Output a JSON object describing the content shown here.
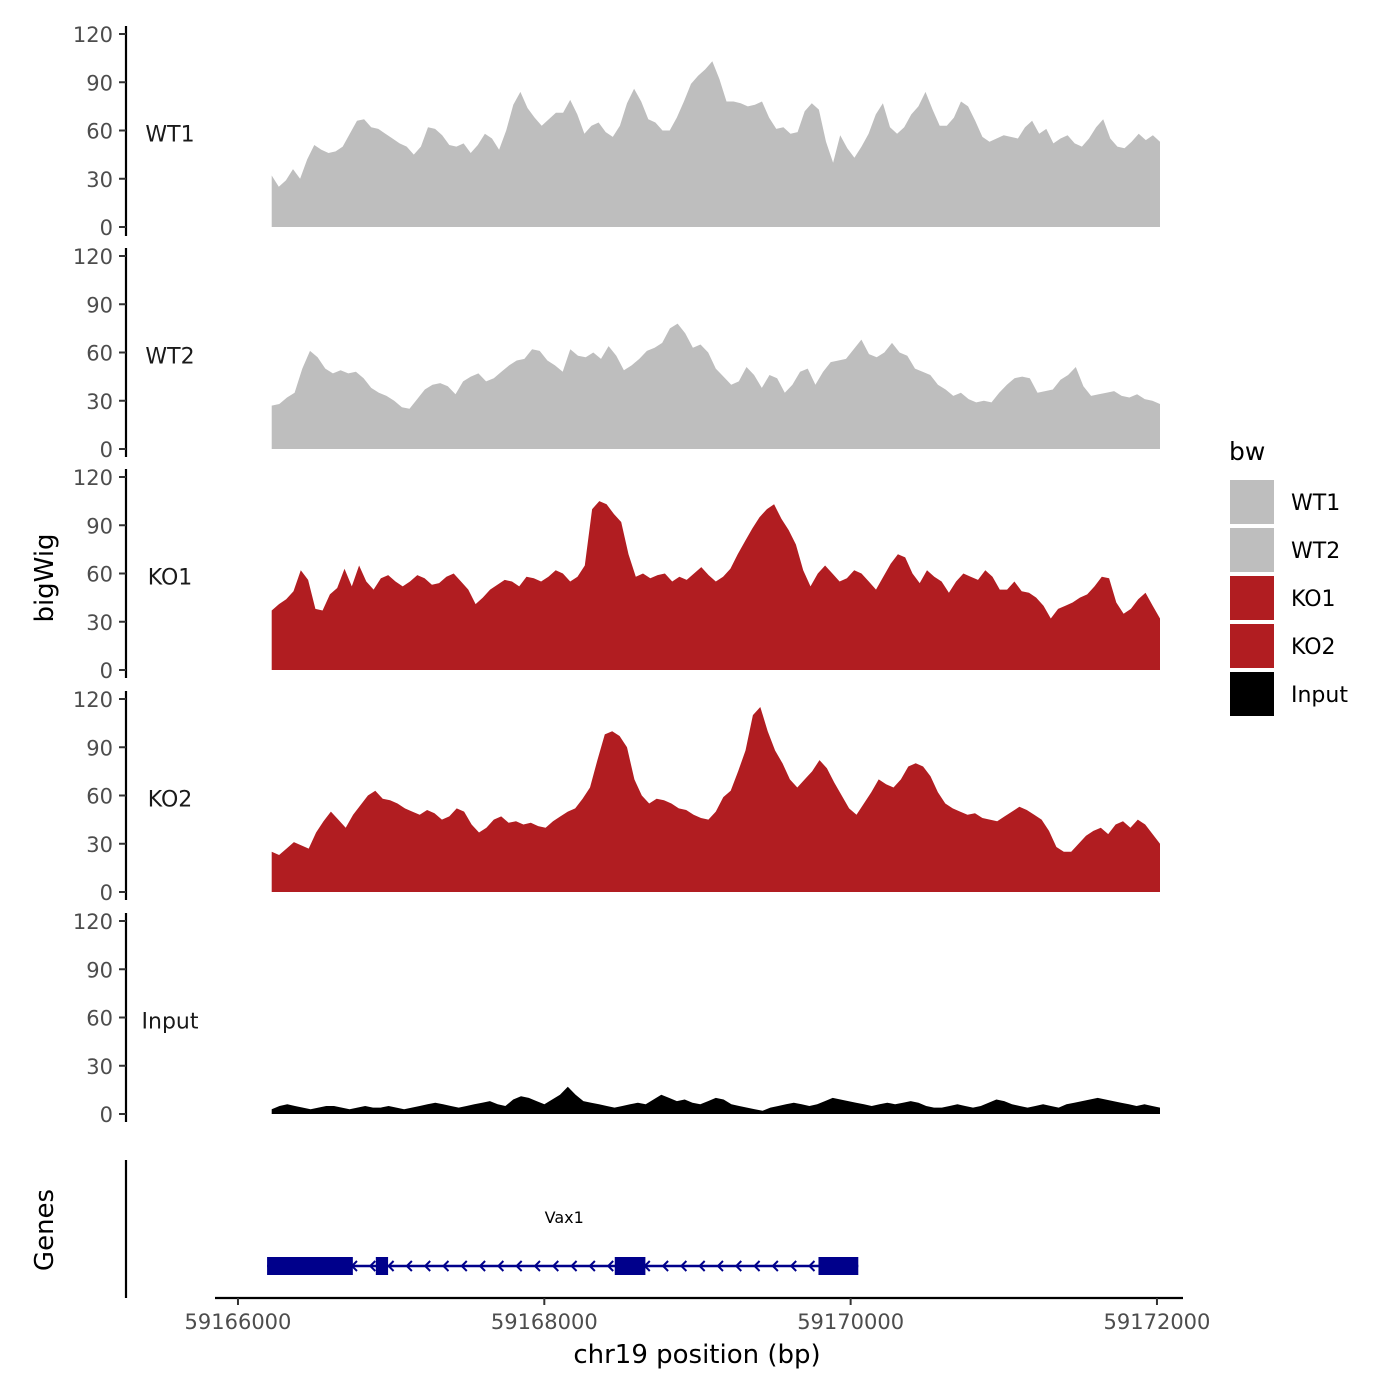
{
  "chart_data": {
    "type": "area",
    "ylabel": "bigWig",
    "xlabel": "chr19 position (bp)",
    "genes_label": "Genes",
    "xlim": [
      59165850,
      59172170
    ],
    "x_ticks": [
      59166000,
      59168000,
      59170000,
      59172000
    ],
    "x_tick_labels": [
      "59166000",
      "59168000",
      "59170000",
      "59172000"
    ],
    "ylim": [
      0,
      120
    ],
    "y_ticks": [
      0,
      30,
      60,
      90,
      120
    ],
    "y_tick_labels": [
      "0",
      "30",
      "60",
      "90",
      "120"
    ],
    "x_start": 59166220,
    "x_end": 59172020,
    "legend": {
      "title": "bw",
      "entries": [
        {
          "label": "WT1",
          "color": "#bebebe"
        },
        {
          "label": "WT2",
          "color": "#bebebe"
        },
        {
          "label": "KO1",
          "color": "#b11d21"
        },
        {
          "label": "KO2",
          "color": "#b11d21"
        },
        {
          "label": "Input",
          "color": "#000000"
        }
      ]
    },
    "series": [
      {
        "name": "WT1",
        "color": "#bebebe",
        "values": [
          32,
          25,
          29,
          36,
          30,
          42,
          51,
          48,
          46,
          47,
          50,
          58,
          66,
          67,
          62,
          61,
          58,
          55,
          52,
          50,
          45,
          50,
          62,
          61,
          57,
          51,
          50,
          52,
          46,
          51,
          58,
          55,
          48,
          60,
          76,
          84,
          74,
          68,
          63,
          67,
          71,
          71,
          79,
          70,
          58,
          63,
          65,
          59,
          56,
          63,
          77,
          86,
          78,
          67,
          65,
          60,
          60,
          68,
          78,
          89,
          94,
          98,
          103,
          92,
          78,
          78,
          77,
          75,
          76,
          78,
          68,
          61,
          62,
          58,
          59,
          72,
          77,
          73,
          53,
          40,
          57,
          49,
          43,
          50,
          58,
          70,
          77,
          62,
          58,
          62,
          70,
          75,
          84,
          73,
          63,
          63,
          68,
          78,
          75,
          66,
          56,
          53,
          55,
          57,
          56,
          55,
          62,
          66,
          58,
          61,
          52,
          55,
          57,
          52,
          50,
          55,
          62,
          67,
          55,
          50,
          49,
          53,
          58,
          54,
          57,
          53
        ]
      },
      {
        "name": "WT2",
        "color": "#bebebe",
        "values": [
          27,
          28,
          32,
          35,
          50,
          61,
          57,
          50,
          47,
          49,
          47,
          48,
          44,
          38,
          35,
          33,
          30,
          26,
          25,
          31,
          37,
          40,
          41,
          39,
          34,
          42,
          45,
          47,
          42,
          44,
          48,
          52,
          55,
          56,
          62,
          61,
          55,
          52,
          48,
          62,
          58,
          57,
          60,
          56,
          64,
          58,
          49,
          52,
          56,
          61,
          63,
          66,
          75,
          78,
          72,
          63,
          65,
          60,
          50,
          45,
          40,
          42,
          51,
          46,
          38,
          46,
          44,
          35,
          40,
          48,
          50,
          40,
          48,
          54,
          55,
          56,
          62,
          68,
          59,
          57,
          60,
          66,
          60,
          58,
          50,
          48,
          46,
          40,
          37,
          33,
          35,
          31,
          29,
          30,
          29,
          35,
          40,
          44,
          45,
          44,
          35,
          36,
          37,
          43,
          46,
          51,
          39,
          33,
          34,
          35,
          36,
          33,
          32,
          34,
          31,
          30,
          28
        ]
      },
      {
        "name": "KO1",
        "color": "#b11d21",
        "values": [
          37,
          41,
          44,
          49,
          62,
          56,
          38,
          37,
          47,
          51,
          63,
          52,
          65,
          55,
          50,
          57,
          59,
          55,
          52,
          55,
          59,
          57,
          53,
          54,
          58,
          60,
          55,
          50,
          41,
          45,
          50,
          53,
          56,
          55,
          52,
          58,
          57,
          55,
          58,
          62,
          60,
          55,
          58,
          65,
          100,
          105,
          103,
          97,
          92,
          72,
          58,
          60,
          57,
          59,
          60,
          55,
          58,
          56,
          60,
          64,
          59,
          55,
          58,
          63,
          72,
          80,
          88,
          95,
          100,
          103,
          94,
          87,
          78,
          62,
          52,
          60,
          65,
          60,
          55,
          57,
          62,
          60,
          55,
          50,
          58,
          66,
          72,
          70,
          60,
          54,
          62,
          58,
          55,
          48,
          55,
          60,
          58,
          56,
          62,
          58,
          50,
          50,
          55,
          49,
          48,
          45,
          40,
          32,
          38,
          40,
          42,
          45,
          47,
          52,
          58,
          57,
          42,
          35,
          38,
          44,
          48,
          40,
          32
        ]
      },
      {
        "name": "KO2",
        "color": "#b11d21",
        "values": [
          25,
          23,
          27,
          31,
          29,
          27,
          37,
          44,
          50,
          45,
          40,
          48,
          54,
          60,
          63,
          58,
          57,
          55,
          52,
          50,
          48,
          51,
          49,
          45,
          47,
          52,
          50,
          42,
          37,
          40,
          45,
          47,
          43,
          44,
          42,
          43,
          41,
          40,
          44,
          47,
          50,
          52,
          58,
          65,
          82,
          98,
          100,
          97,
          90,
          70,
          60,
          55,
          58,
          57,
          55,
          52,
          51,
          48,
          46,
          45,
          50,
          59,
          63,
          75,
          88,
          110,
          115,
          100,
          88,
          80,
          70,
          65,
          70,
          75,
          82,
          77,
          68,
          60,
          52,
          48,
          55,
          62,
          70,
          67,
          65,
          70,
          78,
          80,
          78,
          72,
          62,
          55,
          52,
          50,
          48,
          49,
          46,
          45,
          44,
          47,
          50,
          53,
          51,
          48,
          45,
          38,
          28,
          25,
          25,
          30,
          35,
          38,
          40,
          36,
          42,
          44,
          40,
          45,
          42,
          36,
          30
        ]
      },
      {
        "name": "Input",
        "color": "#000000",
        "values": [
          3,
          5,
          6,
          5,
          4,
          3,
          4,
          5,
          5,
          4,
          3,
          4,
          5,
          4,
          4,
          5,
          4,
          3,
          4,
          5,
          6,
          7,
          6,
          5,
          4,
          5,
          6,
          7,
          8,
          6,
          5,
          9,
          11,
          10,
          8,
          6,
          9,
          12,
          17,
          12,
          8,
          7,
          6,
          5,
          4,
          5,
          6,
          7,
          6,
          9,
          12,
          10,
          8,
          9,
          7,
          6,
          8,
          10,
          9,
          6,
          5,
          4,
          3,
          2,
          4,
          5,
          6,
          7,
          6,
          5,
          6,
          8,
          10,
          9,
          8,
          7,
          6,
          5,
          6,
          7,
          6,
          7,
          8,
          7,
          5,
          4,
          4,
          5,
          6,
          5,
          4,
          5,
          7,
          9,
          8,
          6,
          5,
          4,
          5,
          6,
          5,
          4,
          6,
          7,
          8,
          9,
          10,
          9,
          8,
          7,
          6,
          5,
          6,
          5,
          4
        ]
      }
    ],
    "gene": {
      "name": "Vax1",
      "start": 59166190,
      "end": 59170050,
      "strand": "-",
      "exons": [
        [
          59166190,
          59166750
        ],
        [
          59166900,
          59166980
        ],
        [
          59168460,
          59168660
        ],
        [
          59169790,
          59170050
        ]
      ]
    }
  }
}
